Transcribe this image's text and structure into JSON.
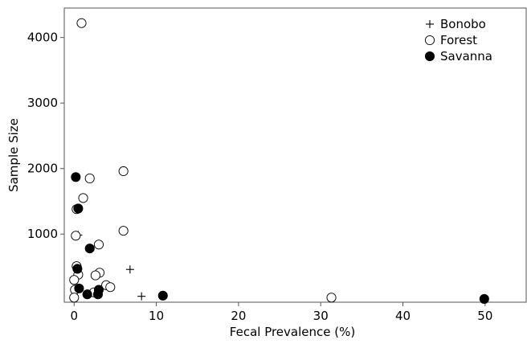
{
  "chart_data": {
    "type": "scatter",
    "title": "",
    "xlabel": "Fecal Prevalence (%)",
    "ylabel": "Sample Size",
    "xlim": [
      -1.2,
      55
    ],
    "ylim": [
      -40,
      4450
    ],
    "x_ticks": [
      0,
      10,
      20,
      30,
      40,
      50
    ],
    "y_ticks": [
      1000,
      2000,
      3000,
      4000
    ],
    "grid": false,
    "legend_position": "top-right",
    "series": [
      {
        "name": "Bonobo",
        "marker": "plus",
        "color": "#000000",
        "points": [
          {
            "x": 0.5,
            "y": 985
          },
          {
            "x": 6.8,
            "y": 460
          },
          {
            "x": 8.2,
            "y": 50
          }
        ]
      },
      {
        "name": "Forest",
        "marker": "open-circle",
        "color": "#000000",
        "points": [
          {
            "x": 0.9,
            "y": 4220
          },
          {
            "x": 6.0,
            "y": 1960
          },
          {
            "x": 1.9,
            "y": 1850
          },
          {
            "x": 1.1,
            "y": 1550
          },
          {
            "x": 0.3,
            "y": 1380
          },
          {
            "x": 6.0,
            "y": 1050
          },
          {
            "x": 0.2,
            "y": 975
          },
          {
            "x": 3.0,
            "y": 840
          },
          {
            "x": 0.3,
            "y": 510
          },
          {
            "x": 0.5,
            "y": 380
          },
          {
            "x": 3.1,
            "y": 410
          },
          {
            "x": 2.6,
            "y": 370
          },
          {
            "x": 0.0,
            "y": 300
          },
          {
            "x": 3.9,
            "y": 220
          },
          {
            "x": 4.4,
            "y": 190
          },
          {
            "x": 0.1,
            "y": 150
          },
          {
            "x": 2.4,
            "y": 110
          },
          {
            "x": 0.0,
            "y": 30
          },
          {
            "x": 31.3,
            "y": 30
          }
        ]
      },
      {
        "name": "Savanna",
        "marker": "filled-circle",
        "color": "#000000",
        "points": [
          {
            "x": 0.2,
            "y": 1870
          },
          {
            "x": 0.5,
            "y": 1390
          },
          {
            "x": 1.9,
            "y": 780
          },
          {
            "x": 0.4,
            "y": 470
          },
          {
            "x": 0.6,
            "y": 170
          },
          {
            "x": 3.0,
            "y": 150
          },
          {
            "x": 1.6,
            "y": 80
          },
          {
            "x": 2.9,
            "y": 80
          },
          {
            "x": 10.8,
            "y": 60
          },
          {
            "x": 49.9,
            "y": 10
          }
        ]
      }
    ]
  }
}
